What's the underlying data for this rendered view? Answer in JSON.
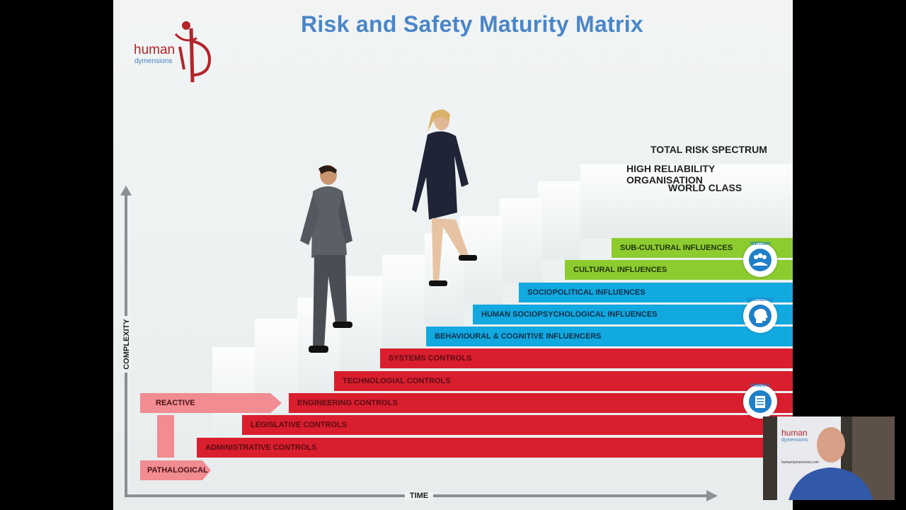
{
  "slide": {
    "title": "Risk and Safety Maturity Matrix",
    "logo": {
      "word1": "human",
      "word2": "dymensions"
    },
    "maturity_levels": [
      "TOTAL RISK SPECTRUM",
      "HIGH RELIABILITY ORGANISATION",
      "WORLD CLASS"
    ],
    "bars": [
      {
        "label": "SUB-CULTURAL INFLUENCES",
        "group": "tertiary"
      },
      {
        "label": "CULTURAL INFLUENCES",
        "group": "tertiary"
      },
      {
        "label": "SOCIOPOLITICAL INFLUENCES",
        "group": "secondary"
      },
      {
        "label": "HUMAN SOCIOPSYCHOLOGICAL INFLUENCES",
        "group": "secondary"
      },
      {
        "label": "BEHAVIOURAL & COGNITIVE  INFLUENCERS",
        "group": "secondary"
      },
      {
        "label": "SYSTEMS CONTROLS",
        "group": "primary"
      },
      {
        "label": "TECHNOLOGIAL CONTROLS",
        "group": "primary"
      },
      {
        "label": "ENGINEERING CONTROLS",
        "group": "primary"
      },
      {
        "label": "LEGISLATIVE CONTROLS",
        "group": "primary"
      },
      {
        "label": "ADMINISTRATIVE CONTROLS",
        "group": "primary"
      }
    ],
    "badges": {
      "tertiary": "TERTIARY",
      "secondary": "SECONDARY",
      "primary": "PRIMARY"
    },
    "stages": {
      "reactive": "REACTIVE",
      "pathological": "PATHALOGICAL"
    },
    "axes": {
      "y": "COMPLEXITY",
      "x": "TIME"
    },
    "colors": {
      "primary": "#d91e2e",
      "secondary": "#12a8e0",
      "tertiary": "#8ccc2f",
      "title": "#4a86c8"
    }
  },
  "webcam": {
    "banner_word1": "human",
    "banner_word2": "dymensions",
    "banner_url": "humandymensions.com"
  }
}
